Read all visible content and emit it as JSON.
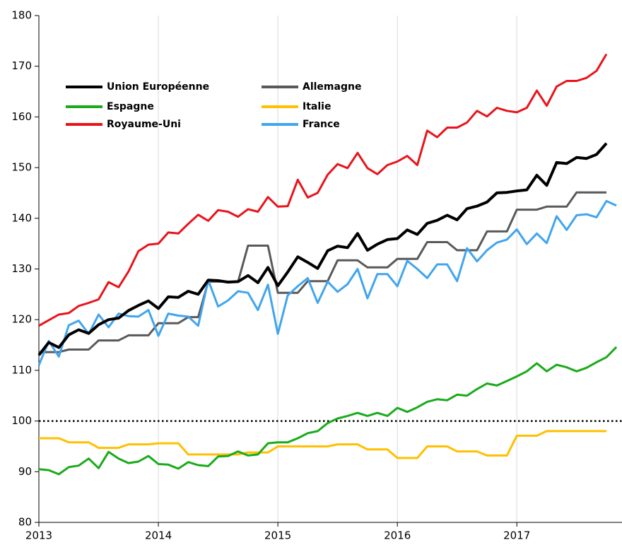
{
  "chart_data": {
    "type": "line",
    "x": [
      2013,
      2013.083,
      2013.167,
      2013.25,
      2013.333,
      2013.417,
      2013.5,
      2013.583,
      2013.667,
      2013.75,
      2013.833,
      2013.917,
      2014,
      2014.083,
      2014.167,
      2014.25,
      2014.333,
      2014.417,
      2014.5,
      2014.583,
      2014.667,
      2014.75,
      2014.833,
      2014.917,
      2015,
      2015.083,
      2015.167,
      2015.25,
      2015.333,
      2015.417,
      2015.5,
      2015.583,
      2015.667,
      2015.75,
      2015.833,
      2015.917,
      2016,
      2016.083,
      2016.167,
      2016.25,
      2016.333,
      2016.417,
      2016.5,
      2016.583,
      2016.667,
      2016.75,
      2016.833,
      2016.917,
      2017,
      2017.083,
      2017.167,
      2017.25,
      2017.333,
      2017.417,
      2017.5,
      2017.583,
      2017.667,
      2017.75,
      2017.833
    ],
    "series": [
      {
        "name": "Union Européenne",
        "color": "#000000",
        "values": [
          113,
          115.5,
          114.5,
          117,
          118,
          117.3,
          119,
          120,
          120.3,
          121.8,
          122.8,
          123.7,
          122.2,
          124.5,
          124.4,
          125.6,
          125,
          127.8,
          127.7,
          127.4,
          127.5,
          128.7,
          127.3,
          130.3,
          126.7,
          129.4,
          132.4,
          131.3,
          130.1,
          133.6,
          134.5,
          134.2,
          137,
          133.7,
          134.9,
          135.8,
          136,
          137.7,
          136.8,
          139,
          139.6,
          140.6,
          139.7,
          141.9,
          142.4,
          143.2,
          145,
          145.1,
          145.4,
          145.6,
          148.5,
          146.5,
          151,
          150.8,
          152,
          151.8,
          152.6,
          154.8,
          null
        ]
      },
      {
        "name": "Allemagne",
        "color": "#595959",
        "values": [
          113.6,
          113.6,
          113.6,
          114.1,
          114.1,
          114.1,
          115.9,
          115.9,
          115.9,
          116.9,
          116.9,
          116.9,
          119.3,
          119.3,
          119.3,
          120.5,
          120.5,
          127.5,
          127.5,
          127.5,
          127.5,
          134.6,
          134.6,
          134.6,
          125.3,
          125.3,
          125.3,
          127.6,
          127.6,
          127.6,
          131.7,
          131.7,
          131.7,
          130.3,
          130.3,
          130.3,
          132,
          132,
          132,
          135.3,
          135.3,
          135.3,
          133.7,
          133.7,
          133.7,
          137.4,
          137.4,
          137.4,
          141.7,
          141.7,
          141.7,
          142.3,
          142.3,
          142.3,
          145.1,
          145.1,
          145.1,
          145.1,
          null
        ]
      },
      {
        "name": "Espagne",
        "color": "#1aab1a",
        "values": [
          90.5,
          90.3,
          89.5,
          90.9,
          91.2,
          92.6,
          90.7,
          93.9,
          92.6,
          91.7,
          92,
          93.1,
          91.5,
          91.4,
          90.6,
          91.9,
          91.3,
          91.1,
          93,
          93.1,
          94,
          93.2,
          93.4,
          95.6,
          95.8,
          95.8,
          96.6,
          97.6,
          98,
          99.6,
          100.5,
          101,
          101.6,
          101,
          101.6,
          101,
          102.6,
          101.8,
          102.7,
          103.8,
          104.3,
          104.1,
          105.2,
          105,
          106.3,
          107.4,
          107,
          107.9,
          108.8,
          109.8,
          111.4,
          109.8,
          111.1,
          110.6,
          109.8,
          110.5,
          111.6,
          112.6,
          114.6
        ]
      },
      {
        "name": "Italie",
        "color": "#ffc000",
        "values": [
          96.6,
          96.6,
          96.6,
          95.8,
          95.8,
          95.8,
          94.7,
          94.7,
          94.7,
          95.4,
          95.4,
          95.4,
          95.6,
          95.6,
          95.6,
          93.4,
          93.4,
          93.4,
          93.4,
          93.4,
          93.4,
          93.8,
          93.8,
          93.8,
          95,
          95,
          95,
          95,
          95,
          95,
          95.4,
          95.4,
          95.4,
          94.4,
          94.4,
          94.4,
          92.7,
          92.7,
          92.7,
          95,
          95,
          95,
          94,
          94,
          94,
          93.2,
          93.2,
          93.2,
          97.1,
          97.1,
          97.1,
          98,
          98,
          98,
          98,
          98,
          98,
          98,
          null
        ]
      },
      {
        "name": "Royaume-Uni",
        "color": "#e8141b",
        "values": [
          118.8,
          119.9,
          121,
          121.3,
          122.7,
          123.3,
          124,
          127.4,
          126.4,
          129.5,
          133.5,
          134.8,
          135,
          137.2,
          137,
          138.9,
          140.7,
          139.5,
          141.6,
          141.3,
          140.3,
          141.8,
          141.3,
          144.2,
          142.3,
          142.4,
          147.6,
          144.1,
          145,
          148.6,
          150.7,
          149.9,
          152.9,
          149.9,
          148.7,
          150.5,
          151.2,
          152.3,
          150.5,
          157.3,
          156,
          157.9,
          157.9,
          158.9,
          161.2,
          160.1,
          161.8,
          161.2,
          160.9,
          161.8,
          165.2,
          162.2,
          166,
          167.1,
          167.1,
          167.7,
          169.1,
          172.4,
          null
        ]
      },
      {
        "name": "France",
        "color": "#41a5ee",
        "values": [
          111,
          115.8,
          112.7,
          118.9,
          119.8,
          117.2,
          121,
          118.5,
          121.2,
          120.7,
          120.6,
          121.9,
          116.8,
          121.2,
          120.8,
          120.6,
          118.8,
          127.8,
          122.6,
          123.8,
          125.6,
          125.3,
          121.9,
          126.9,
          117.2,
          124.8,
          126.6,
          128.2,
          123.3,
          127.5,
          125.5,
          127,
          130,
          124.2,
          129,
          129,
          126.6,
          131.6,
          130,
          128.2,
          130.9,
          130.9,
          127.6,
          134.1,
          131.5,
          133.7,
          135.2,
          135.8,
          137.8,
          134.9,
          137,
          135.1,
          140.4,
          137.7,
          140.6,
          140.8,
          140.2,
          143.4,
          142.5
        ]
      }
    ],
    "reference_line": 100,
    "xlim": [
      2013,
      2017.88
    ],
    "xticks": [
      2013,
      2014,
      2015,
      2016,
      2017
    ],
    "ylim": [
      80,
      180
    ],
    "yticks": [
      80,
      90,
      100,
      110,
      120,
      130,
      140,
      150,
      160,
      170,
      180
    ],
    "grid": "x",
    "legend": "upper left"
  }
}
